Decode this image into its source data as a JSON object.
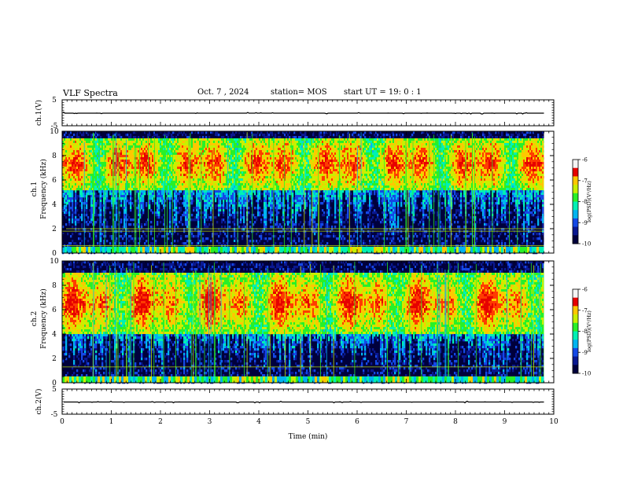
{
  "header": {
    "title": "VLF Spectra",
    "date": "Oct. 7 , 2024",
    "station": "station= MOS",
    "start": "start  UT =   19: 0  : 1"
  },
  "colors": {
    "colormap": [
      "#00003c",
      "#0a1890",
      "#1448e6",
      "#00b4f0",
      "#00f0b4",
      "#28f028",
      "#c8f000",
      "#ffc800",
      "#ff3c00",
      "#e60000",
      "#f5f5f5"
    ]
  },
  "chart_data": [
    {
      "type": "line",
      "name": "ch1-waveform",
      "ylabel": "ch.1(V)",
      "ylim": [
        -5,
        5
      ],
      "yticks": [
        "5",
        "-5"
      ],
      "xlim": [
        0,
        10
      ],
      "baseline": 0,
      "grid": false
    },
    {
      "type": "heatmap",
      "name": "ch1-spectrogram",
      "ylabel": [
        "ch.1",
        "Frequency (kHz)"
      ],
      "ylim": [
        0,
        10
      ],
      "yticks": [
        "0",
        "2",
        "4",
        "6",
        "8",
        "10"
      ],
      "xlim": [
        0,
        10
      ],
      "data_end_min": 9.8,
      "band_khz": [
        5.5,
        9.3
      ],
      "lines_khz": [
        2.0,
        1.8,
        0.6
      ],
      "colorbar": {
        "label": "log(PSD)(V²/Hz)",
        "range": [
          -10,
          -6
        ],
        "ticks": [
          "-6",
          "-7",
          "-8",
          "-9",
          "-10"
        ]
      }
    },
    {
      "type": "heatmap",
      "name": "ch2-spectrogram",
      "ylabel": [
        "ch.2",
        "Frequency (kHz)"
      ],
      "ylim": [
        0,
        10
      ],
      "yticks": [
        "0",
        "2",
        "4",
        "6",
        "8",
        "10"
      ],
      "xlim": [
        0,
        10
      ],
      "data_end_min": 9.8,
      "band_khz": [
        4.5,
        8.8
      ],
      "lines_khz": [
        1.3,
        0.5
      ],
      "colorbar": {
        "label": "log(PSD)(V²/Hz)",
        "range": [
          -10,
          -6
        ],
        "ticks": [
          "-6",
          "-7",
          "-8",
          "-9",
          "-10"
        ]
      }
    },
    {
      "type": "line",
      "name": "ch2-waveform",
      "ylabel": "ch.2(V)",
      "ylim": [
        -5,
        5
      ],
      "yticks": [
        "5",
        "-5"
      ],
      "xlim": [
        0,
        10
      ],
      "baseline": 0,
      "grid": false,
      "xlabel": "Time (min)",
      "xticks": [
        "0",
        "1",
        "2",
        "3",
        "4",
        "5",
        "6",
        "7",
        "8",
        "9",
        "10"
      ]
    }
  ]
}
